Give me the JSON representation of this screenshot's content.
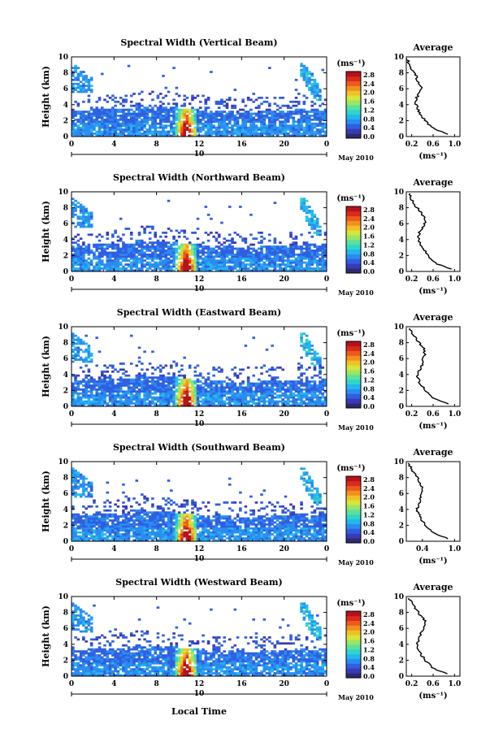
{
  "figure": {
    "xlabel": "Local Time",
    "date_label": "May 2010",
    "day_label": "10"
  },
  "colorbar": {
    "unit": "(ms⁻¹)",
    "ticks": [
      "2.8",
      "2.4",
      "2.0",
      "1.6",
      "1.2",
      "0.8",
      "0.4",
      "0.0"
    ],
    "colors": [
      "#2b2b6e",
      "#3a3ab8",
      "#2f5fe0",
      "#2a8cf0",
      "#22b8ee",
      "#2fd6c8",
      "#5ee09a",
      "#9ae665",
      "#d6e63a",
      "#f2c029",
      "#f2901f",
      "#ec5a1c",
      "#d92a1c",
      "#b5121a"
    ]
  },
  "chart_data": [
    {
      "type": "heatmap",
      "title": "Spectral Width (Vertical Beam)",
      "ylabel": "Height (km)",
      "xlim": [
        0,
        24
      ],
      "ylim": [
        0,
        10
      ],
      "xticks": [
        "0",
        "4",
        "8",
        "12",
        "16",
        "20",
        "0"
      ],
      "yticks": [
        "0",
        "2",
        "4",
        "6",
        "8",
        "10"
      ],
      "colorbar_ticks": [
        "2.8",
        "2.4",
        "2.0",
        "1.6",
        "1.2",
        "0.8",
        "0.4",
        "0.0"
      ],
      "average": {
        "title": "Average",
        "xlabel": "(ms⁻¹)",
        "xticks": [
          "0.2",
          "0.6",
          "1.0"
        ],
        "xlim": [
          0.1,
          1.1
        ],
        "yticks": [
          "0",
          "2",
          "4",
          "6",
          "8",
          "10"
        ],
        "height_km": [
          0.3,
          1,
          2,
          3,
          4,
          5,
          6,
          7,
          8,
          9,
          9.8
        ],
        "width_ms": [
          0.9,
          0.6,
          0.45,
          0.35,
          0.28,
          0.3,
          0.38,
          0.32,
          0.25,
          0.15,
          0.12
        ]
      }
    },
    {
      "type": "heatmap",
      "title": "Spectral Width (Northward Beam)",
      "ylabel": "Height (km)",
      "xlim": [
        0,
        24
      ],
      "ylim": [
        0,
        10
      ],
      "xticks": [
        "0",
        "4",
        "8",
        "12",
        "16",
        "20",
        "0"
      ],
      "yticks": [
        "0",
        "2",
        "4",
        "6",
        "8",
        "10"
      ],
      "colorbar_ticks": [
        "2.8",
        "2.4",
        "2.0",
        "1.6",
        "1.2",
        "0.8",
        "0.4",
        "0.0"
      ],
      "average": {
        "title": "Average",
        "xlabel": "(ms⁻¹)",
        "xticks": [
          "0.2",
          "0.6",
          "1.0"
        ],
        "xlim": [
          0.1,
          1.1
        ],
        "yticks": [
          "0",
          "2",
          "4",
          "6",
          "8",
          "10"
        ],
        "height_km": [
          0.3,
          1,
          2,
          3,
          4,
          5,
          6,
          7,
          8,
          9,
          9.8
        ],
        "width_ms": [
          0.95,
          0.65,
          0.5,
          0.4,
          0.33,
          0.35,
          0.45,
          0.42,
          0.3,
          0.2,
          0.15
        ]
      }
    },
    {
      "type": "heatmap",
      "title": "Spectral Width (Eastward Beam)",
      "ylabel": "Height (km)",
      "xlim": [
        0,
        24
      ],
      "ylim": [
        0,
        10
      ],
      "xticks": [
        "0",
        "4",
        "8",
        "12",
        "16",
        "20",
        "0"
      ],
      "yticks": [
        "0",
        "2",
        "4",
        "6",
        "8",
        "10"
      ],
      "colorbar_ticks": [
        "2.8",
        "2.4",
        "2.0",
        "1.6",
        "1.2",
        "0.8",
        "0.4",
        "0.0"
      ],
      "average": {
        "title": "Average",
        "xlabel": "(ms⁻¹)",
        "xticks": [
          "0.2",
          "0.6",
          "1.0"
        ],
        "xlim": [
          0.1,
          1.1
        ],
        "yticks": [
          "0",
          "2",
          "4",
          "6",
          "8",
          "10"
        ],
        "height_km": [
          0.3,
          1,
          2,
          3,
          4,
          5,
          6,
          7,
          8,
          9,
          9.8
        ],
        "width_ms": [
          0.9,
          0.6,
          0.45,
          0.35,
          0.3,
          0.38,
          0.42,
          0.45,
          0.35,
          0.22,
          0.15
        ]
      }
    },
    {
      "type": "heatmap",
      "title": "Spectral Width (Southward Beam)",
      "ylabel": "Height (km)",
      "xlim": [
        0,
        24
      ],
      "ylim": [
        0,
        10
      ],
      "xticks": [
        "0",
        "4",
        "8",
        "12",
        "16",
        "20",
        "0"
      ],
      "yticks": [
        "0",
        "2",
        "4",
        "6",
        "8",
        "10"
      ],
      "colorbar_ticks": [
        "2.8",
        "2.4",
        "2.0",
        "1.6",
        "1.2",
        "0.8",
        "0.4",
        "0.0"
      ],
      "average": {
        "title": "Average",
        "xlabel": "(ms⁻¹)",
        "xticks": [
          "0.4",
          "1.0"
        ],
        "xlim": [
          0.1,
          1.1
        ],
        "yticks": [
          "0",
          "2",
          "4",
          "6",
          "8",
          "10"
        ],
        "height_km": [
          0.3,
          1,
          2,
          3,
          4,
          5,
          6,
          7,
          8,
          9,
          9.8
        ],
        "width_ms": [
          0.9,
          0.6,
          0.45,
          0.35,
          0.3,
          0.35,
          0.4,
          0.38,
          0.3,
          0.2,
          0.15
        ]
      }
    },
    {
      "type": "heatmap",
      "title": "Spectral Width (Westward Beam)",
      "ylabel": "Height (km)",
      "xlim": [
        0,
        24
      ],
      "ylim": [
        0,
        10
      ],
      "xticks": [
        "0",
        "4",
        "8",
        "12",
        "16",
        "20",
        "0"
      ],
      "yticks": [
        "0",
        "2",
        "4",
        "6",
        "8",
        "10"
      ],
      "colorbar_ticks": [
        "2.8",
        "2.4",
        "2.0",
        "1.6",
        "1.2",
        "0.8",
        "0.4",
        "0.0"
      ],
      "average": {
        "title": "Average",
        "xlabel": "(ms⁻¹)",
        "xticks": [
          "0.2",
          "0.6",
          "1.0"
        ],
        "xlim": [
          0.1,
          1.1
        ],
        "yticks": [
          "0",
          "2",
          "4",
          "6",
          "8",
          "10"
        ],
        "height_km": [
          0.3,
          1,
          2,
          3,
          4,
          5,
          6,
          7,
          8,
          9,
          9.8
        ],
        "width_ms": [
          0.85,
          0.6,
          0.45,
          0.35,
          0.3,
          0.35,
          0.42,
          0.45,
          0.32,
          0.22,
          0.15
        ]
      }
    }
  ]
}
